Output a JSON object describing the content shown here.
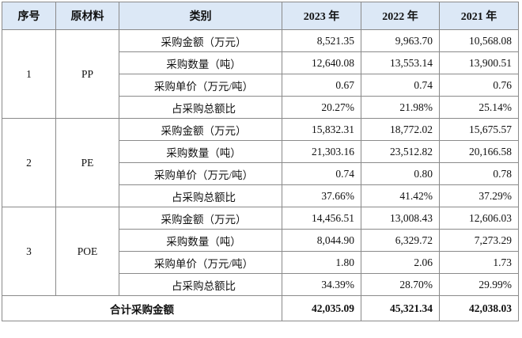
{
  "headers": [
    "序号",
    "原材料",
    "类别",
    "2023 年",
    "2022 年",
    "2021 年"
  ],
  "groups": [
    {
      "seq": "1",
      "material": "PP",
      "rows": [
        {
          "category": "采购金额（万元）",
          "values": [
            "8,521.35",
            "9,963.70",
            "10,568.08"
          ]
        },
        {
          "category": "采购数量（吨）",
          "values": [
            "12,640.08",
            "13,553.14",
            "13,900.51"
          ]
        },
        {
          "category": "采购单价（万元/吨）",
          "values": [
            "0.67",
            "0.74",
            "0.76"
          ]
        },
        {
          "category": "占采购总额比",
          "values": [
            "20.27%",
            "21.98%",
            "25.14%"
          ]
        }
      ]
    },
    {
      "seq": "2",
      "material": "PE",
      "rows": [
        {
          "category": "采购金额（万元）",
          "values": [
            "15,832.31",
            "18,772.02",
            "15,675.57"
          ]
        },
        {
          "category": "采购数量（吨）",
          "values": [
            "21,303.16",
            "23,512.82",
            "20,166.58"
          ]
        },
        {
          "category": "采购单价（万元/吨）",
          "values": [
            "0.74",
            "0.80",
            "0.78"
          ]
        },
        {
          "category": "占采购总额比",
          "values": [
            "37.66%",
            "41.42%",
            "37.29%"
          ]
        }
      ]
    },
    {
      "seq": "3",
      "material": "POE",
      "rows": [
        {
          "category": "采购金额（万元）",
          "values": [
            "14,456.51",
            "13,008.43",
            "12,606.03"
          ]
        },
        {
          "category": "采购数量（吨）",
          "values": [
            "8,044.90",
            "6,329.72",
            "7,273.29"
          ]
        },
        {
          "category": "采购单价（万元/吨）",
          "values": [
            "1.80",
            "2.06",
            "1.73"
          ]
        },
        {
          "category": "占采购总额比",
          "values": [
            "34.39%",
            "28.70%",
            "29.99%"
          ]
        }
      ]
    }
  ],
  "total": {
    "label": "合计采购金额",
    "values": [
      "42,035.09",
      "45,321.34",
      "42,038.03"
    ]
  }
}
